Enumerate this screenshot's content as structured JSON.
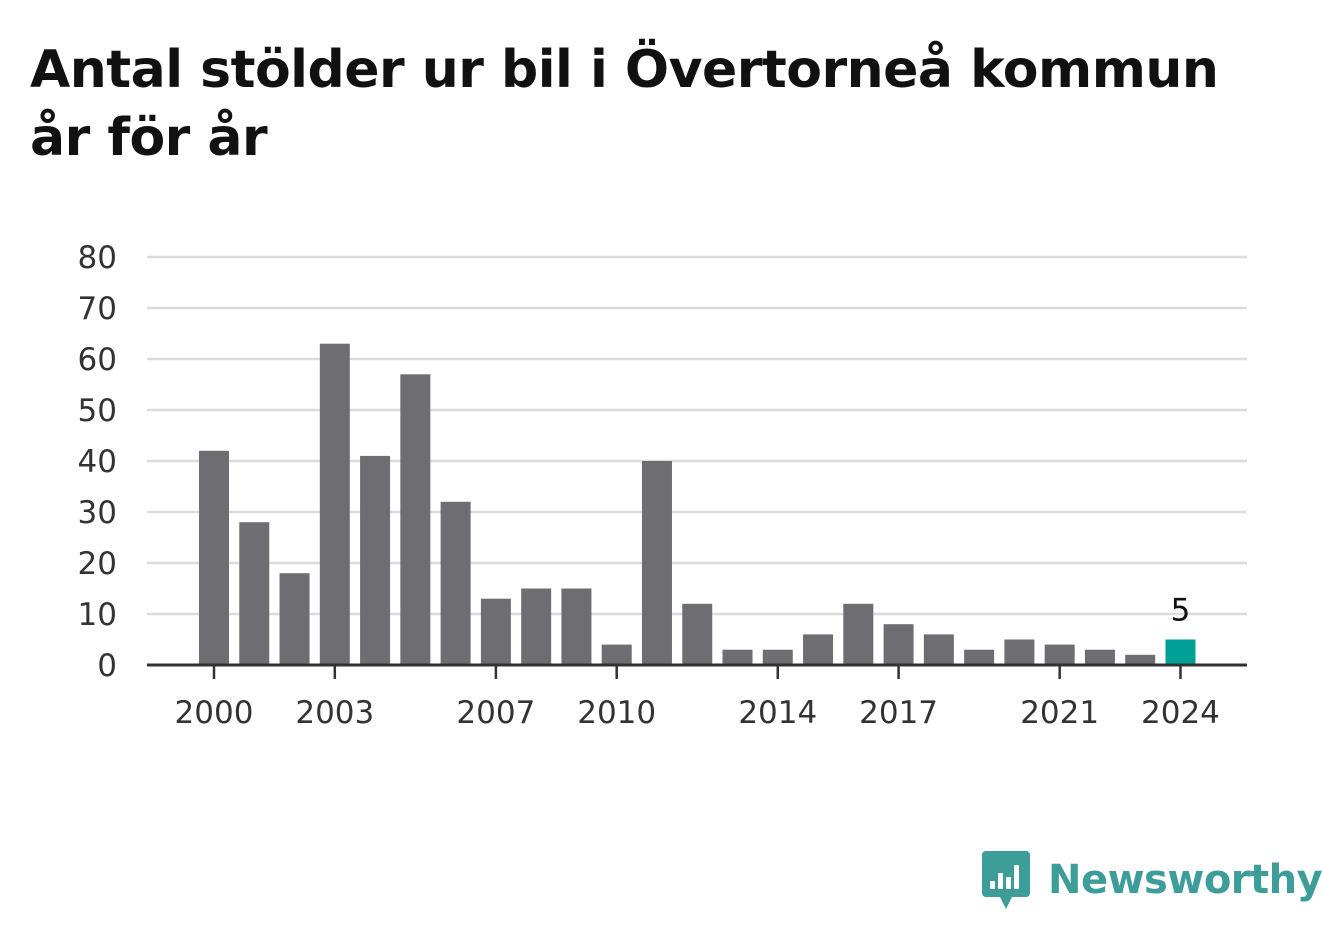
{
  "title": "Antal stölder ur bil i Övertorneå kommun år för år",
  "brand": {
    "name": "Newsworthy",
    "icon": "bar-chart-speech-bubble-icon",
    "color": "#3d9d99"
  },
  "colors": {
    "bar": "#6e6d72",
    "highlight": "#00a096",
    "grid": "#dcdcdc",
    "axis": "#333333"
  },
  "chart_data": {
    "type": "bar",
    "title": "Antal stölder ur bil i Övertorneå kommun år för år",
    "xlabel": "",
    "ylabel": "",
    "categories": [
      2000,
      2001,
      2002,
      2003,
      2004,
      2005,
      2006,
      2007,
      2008,
      2009,
      2010,
      2011,
      2012,
      2013,
      2014,
      2015,
      2016,
      2017,
      2018,
      2019,
      2020,
      2021,
      2022,
      2023,
      2024
    ],
    "values": [
      42,
      28,
      18,
      63,
      41,
      57,
      32,
      13,
      15,
      15,
      4,
      40,
      12,
      3,
      3,
      6,
      12,
      8,
      6,
      3,
      5,
      4,
      3,
      2,
      5
    ],
    "x_tick_labels": [
      "2000",
      "2003",
      "2007",
      "2010",
      "2014",
      "2017",
      "2021",
      "2024"
    ],
    "y_ticks": [
      0,
      10,
      20,
      30,
      40,
      50,
      60,
      70,
      80
    ],
    "ylim": [
      0,
      80
    ],
    "grid": true,
    "highlight": {
      "category": 2024,
      "label": "5"
    }
  }
}
